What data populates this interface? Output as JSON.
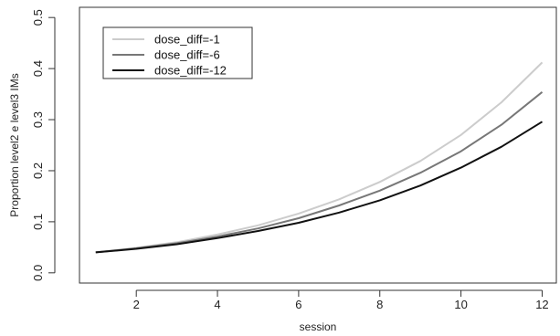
{
  "chart_data": {
    "type": "line",
    "title": "",
    "xlabel": "session",
    "ylabel": "Proportion level2 e level3 IMs",
    "xlim": [
      0.6,
      12.35
    ],
    "ylim": [
      -0.02,
      0.52
    ],
    "xticks": [
      2,
      4,
      6,
      8,
      10,
      12
    ],
    "xtick_labels": [
      "2",
      "4",
      "6",
      "8",
      "10",
      "12"
    ],
    "yticks": [
      0.0,
      0.1,
      0.2,
      0.3,
      0.4,
      0.5
    ],
    "ytick_labels": [
      "0.0",
      "0.1",
      "0.2",
      "0.3",
      "0.4",
      "0.5"
    ],
    "grid": false,
    "legend_position": "top-left",
    "x": [
      1,
      2,
      3,
      4,
      5,
      6,
      7,
      8,
      9,
      10,
      11,
      12
    ],
    "series": [
      {
        "name": "dose_diff=-1",
        "color": "#cccccc",
        "values": [
          0.04,
          0.049,
          0.06,
          0.075,
          0.093,
          0.116,
          0.144,
          0.178,
          0.219,
          0.27,
          0.334,
          0.412
        ]
      },
      {
        "name": "dose_diff=-6",
        "color": "#777777",
        "values": [
          0.04,
          0.048,
          0.058,
          0.071,
          0.087,
          0.107,
          0.132,
          0.161,
          0.196,
          0.238,
          0.29,
          0.354
        ]
      },
      {
        "name": "dose_diff=-12",
        "color": "#111111",
        "values": [
          0.04,
          0.047,
          0.056,
          0.068,
          0.082,
          0.098,
          0.118,
          0.142,
          0.171,
          0.206,
          0.247,
          0.296
        ]
      }
    ]
  }
}
